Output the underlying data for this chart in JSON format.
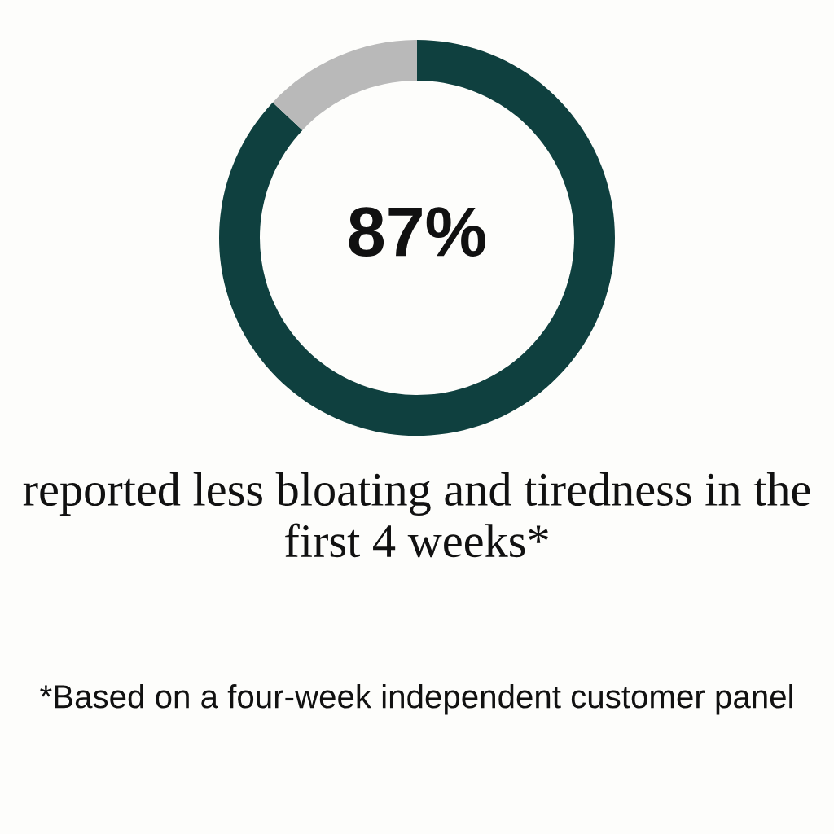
{
  "chart_data": {
    "type": "donut",
    "categories": [
      null,
      null
    ],
    "values": [
      87,
      13
    ],
    "colors": [
      "#0f403f",
      "#b9b9b9"
    ],
    "value_labels": [
      "87%",
      null
    ],
    "subtitle": "reported less bloating and tiredness in the first 4 weeks*",
    "annotations": [
      "*Based on a four-week independent customer panel"
    ],
    "legend": false
  }
}
